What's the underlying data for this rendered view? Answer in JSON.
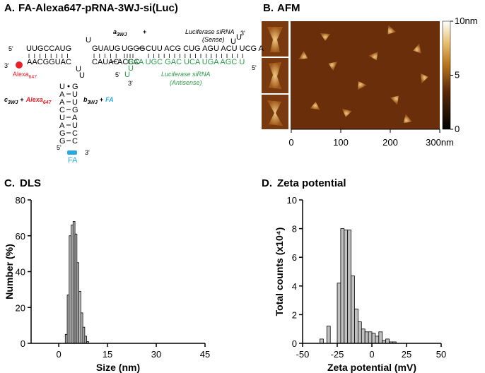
{
  "panel_a": {
    "label": "A.",
    "title": "FA-Alexa647-pRNA-3WJ-si(Luc)",
    "seq": [
      "5'",
      "UUGCCAUG",
      "U",
      "GUAUG",
      "UGGG",
      "CUU ACG CUG AGU ACU UCG A",
      "U",
      "U",
      "3'",
      "3'",
      "AACGGUAC",
      "CAUAC",
      "ACCC",
      "GAA UGC GAC UCA UGA AGC U",
      "5'",
      "U",
      "U",
      "5'",
      "U",
      "U",
      "3'",
      "5'",
      "3'"
    ],
    "stem": [
      [
        "U",
        "G"
      ],
      [
        "A",
        "U"
      ],
      [
        "A",
        "U"
      ],
      [
        "C",
        "G"
      ],
      [
        "U",
        "A"
      ],
      [
        "A",
        "U"
      ],
      [
        "G",
        "C"
      ],
      [
        "G",
        "C"
      ]
    ],
    "sense": "Luciferase siRNA",
    "sense_note": "(Sense)",
    "antisense": "Luciferase siRNA",
    "antisense_note": "(Antisense)",
    "a_strand": "a",
    "a_sub": "3WJ",
    "a_plus": "+",
    "c_strand": "c",
    "c_sub": "3WJ",
    "c_plus": "+",
    "c_dye": "Alexa",
    "c_dye_sub": "647",
    "b_strand": "b",
    "b_sub": "3WJ",
    "b_plus": "+",
    "b_fa": "FA",
    "dye": "Alexa",
    "dye_sub": "647",
    "fa": "FA"
  },
  "panel_b": {
    "label": "B.",
    "title": "AFM",
    "xlim": [
      0,
      300
    ],
    "xticks": [
      0,
      100,
      200,
      {
        "value": 300,
        "label": "300nm"
      }
    ],
    "colorbar_lim": [
      0,
      10
    ],
    "colorbar_ticks": [
      {
        "value": 10,
        "label": "10nm"
      },
      5,
      0
    ]
  },
  "chart_data": [
    {
      "type": "histogram",
      "label": "C.",
      "title": "DLS",
      "x_label": "Size (nm)",
      "y_label": "Number (%)",
      "bins": [
        2.0,
        2.6,
        3.2,
        3.8,
        4.4,
        5.0,
        5.6,
        6.2,
        6.8,
        7.4,
        8.0,
        8.6,
        9.2
      ],
      "counts": [
        5,
        27,
        60,
        66,
        68,
        61,
        45,
        29,
        17,
        9,
        4,
        1
      ],
      "color": "#c0c0c0",
      "xlim": [
        -8.5,
        45
      ],
      "xticks": [
        0,
        15,
        30,
        45
      ],
      "ylim": [
        0,
        80
      ],
      "yticks": [
        0,
        20,
        40,
        60,
        80
      ]
    },
    {
      "type": "histogram",
      "label": "D.",
      "title": "Zeta potential",
      "x_label": "Zeta potential (mV)",
      "y_label": "Total counts (x10⁴)",
      "bins": [
        -37.5,
        -35,
        -32.5,
        -30,
        -27.5,
        -25,
        -22.5,
        -20,
        -17.5,
        -15,
        -12.5,
        -10,
        -7.5,
        -5,
        -2.5,
        0,
        2.5,
        5,
        7.5,
        10,
        12.5,
        15,
        17.5
      ],
      "counts": [
        0.3,
        0,
        1.2,
        0,
        0,
        4.2,
        8.0,
        7.9,
        7.9,
        4.7,
        2.4,
        1.5,
        1.0,
        0.8,
        0.8,
        0.7,
        0.5,
        0.8,
        0.2,
        0.3,
        0.1,
        0.1
      ],
      "color": "#c0c0c0",
      "xlim": [
        -50,
        50
      ],
      "xticks": [
        -50,
        -25,
        0,
        25,
        50
      ],
      "ylim": [
        0,
        10
      ],
      "yticks": [
        0,
        2,
        4,
        6,
        8,
        10
      ]
    }
  ]
}
